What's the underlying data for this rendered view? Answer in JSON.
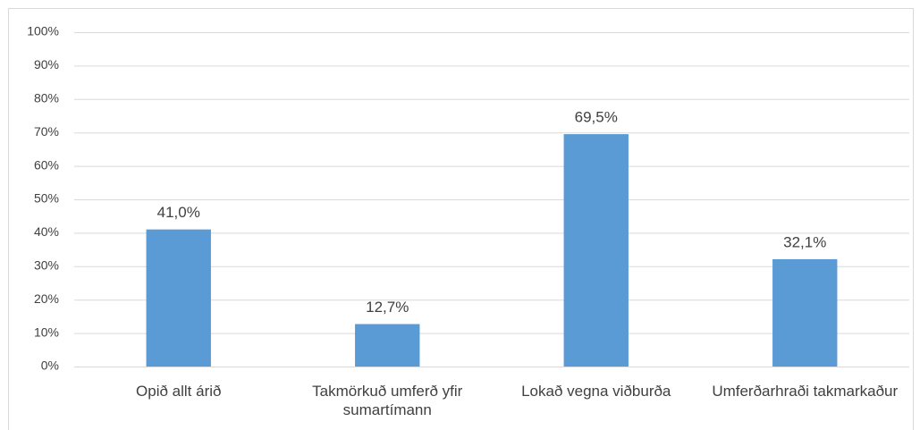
{
  "chart_data": {
    "type": "bar",
    "categories": [
      "Opið allt árið",
      "Takmörkuð umferð yfir sumartímann",
      "Lokað vegna viðburða",
      "Umferðarhraði takmarkaður"
    ],
    "values": [
      41.0,
      12.7,
      69.5,
      32.1
    ],
    "value_labels": [
      "41,0%",
      "12,7%",
      "69,5%",
      "32,1%"
    ],
    "color": "#5b9bd5",
    "ylim": [
      0,
      100
    ],
    "yticks": [
      {
        "value": 0,
        "label": "0%"
      },
      {
        "value": 10,
        "label": "10%"
      },
      {
        "value": 20,
        "label": "20%"
      },
      {
        "value": 30,
        "label": "30%"
      },
      {
        "value": 40,
        "label": "40%"
      },
      {
        "value": 50,
        "label": "50%"
      },
      {
        "value": 60,
        "label": "60%"
      },
      {
        "value": 70,
        "label": "70%"
      },
      {
        "value": 80,
        "label": "80%"
      },
      {
        "value": 90,
        "label": "90%"
      },
      {
        "value": 100,
        "label": "100%"
      }
    ],
    "grid": true
  }
}
